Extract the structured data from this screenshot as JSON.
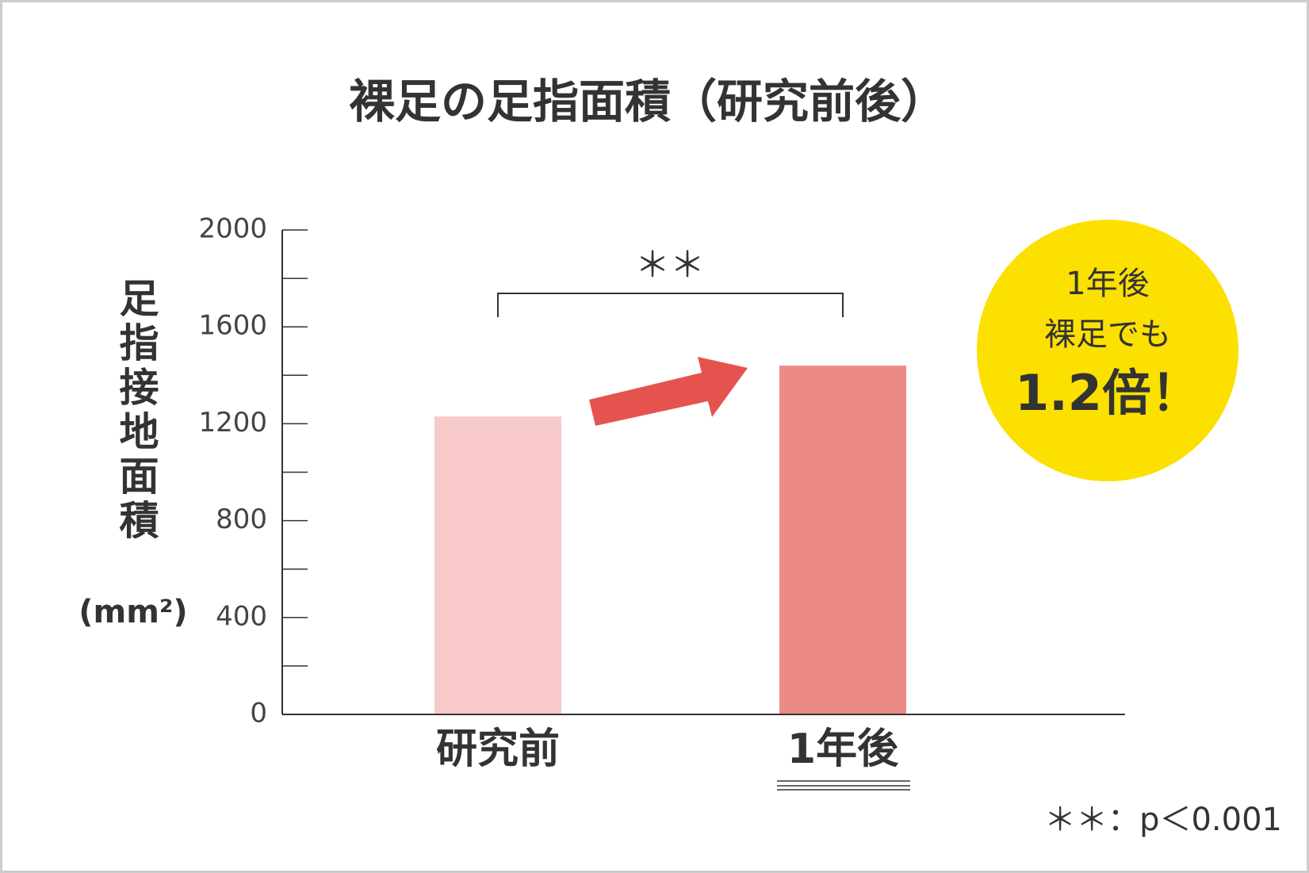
{
  "chart_data": {
    "type": "bar",
    "title": "裸足の足指面積（研究前後）",
    "y_label": "足指接地面積",
    "y_label_unit": "(mm²)",
    "categories": [
      "研究前",
      "1年後"
    ],
    "values": [
      1230,
      1440
    ],
    "colors": [
      "#f7cac9",
      "#ec8a85"
    ],
    "ylim": [
      0,
      2000
    ],
    "yticks": [
      0,
      400,
      800,
      1200,
      1600,
      2000
    ],
    "minor_yticks": [
      200,
      600,
      1000,
      1400,
      1800
    ],
    "significance": "＊＊",
    "footnote": "＊＊：p＜0.001",
    "callout": [
      "1年後",
      "裸足でも",
      "1.2倍！"
    ],
    "callout_color": "#fce000"
  }
}
